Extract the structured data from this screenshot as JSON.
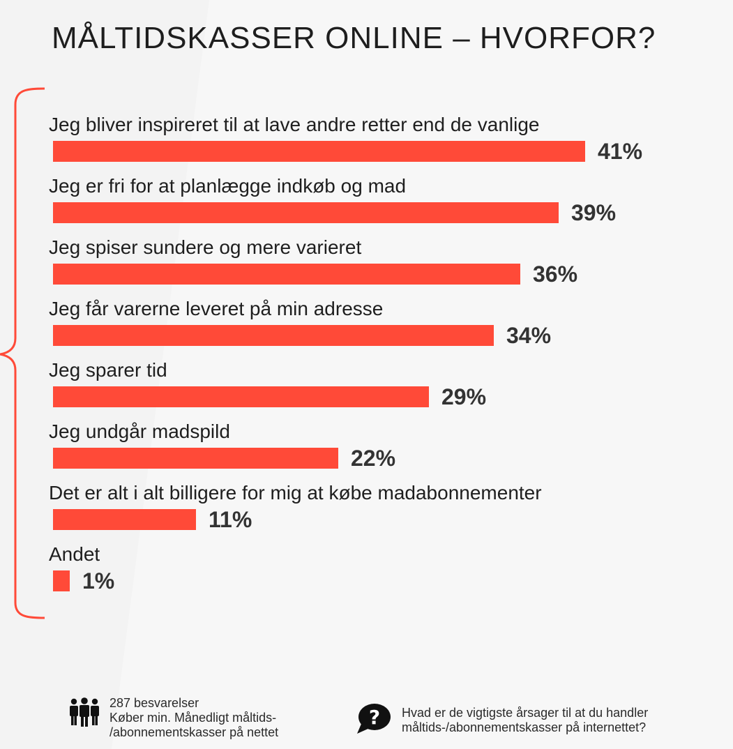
{
  "title": "MÅLTIDSKASSER ONLINE – HVORFOR?",
  "colors": {
    "bar": "#ff4a38",
    "brace": "#ff4a38",
    "text": "#1e1e1e",
    "value": "#333333",
    "background": "#f3f3f3"
  },
  "chart_data": {
    "type": "bar",
    "orientation": "horizontal",
    "title": "MÅLTIDSKASSER ONLINE – HVORFOR?",
    "categories": [
      "Jeg bliver inspireret til at lave andre retter end de vanlige",
      "Jeg er fri for at planlægge indkøb og mad",
      "Jeg spiser sundere og mere varieret",
      "Jeg får varerne leveret på min adresse",
      "Jeg sparer tid",
      "Jeg undgår madspild",
      "Det er alt i alt billigere for mig at købe madabonnementer",
      "Andet"
    ],
    "values": [
      41,
      39,
      36,
      34,
      29,
      22,
      11,
      1
    ],
    "value_labels": [
      "41%",
      "39%",
      "36%",
      "34%",
      "29%",
      "22%",
      "11%",
      "1%"
    ],
    "unit": "%",
    "grid": false,
    "legend": "none"
  },
  "footer": {
    "respondents_icon": "people-group-icon",
    "respondents_lines": [
      "287 besvarelser",
      "Køber min. Månedligt måltids-",
      "/abonnementskasser på nettet"
    ],
    "question_icon": "question-bubble-icon",
    "question_lines": [
      "Hvad er de vigtigste årsager til at du handler",
      "måltids-/abonnementskasser på internettet?"
    ]
  }
}
